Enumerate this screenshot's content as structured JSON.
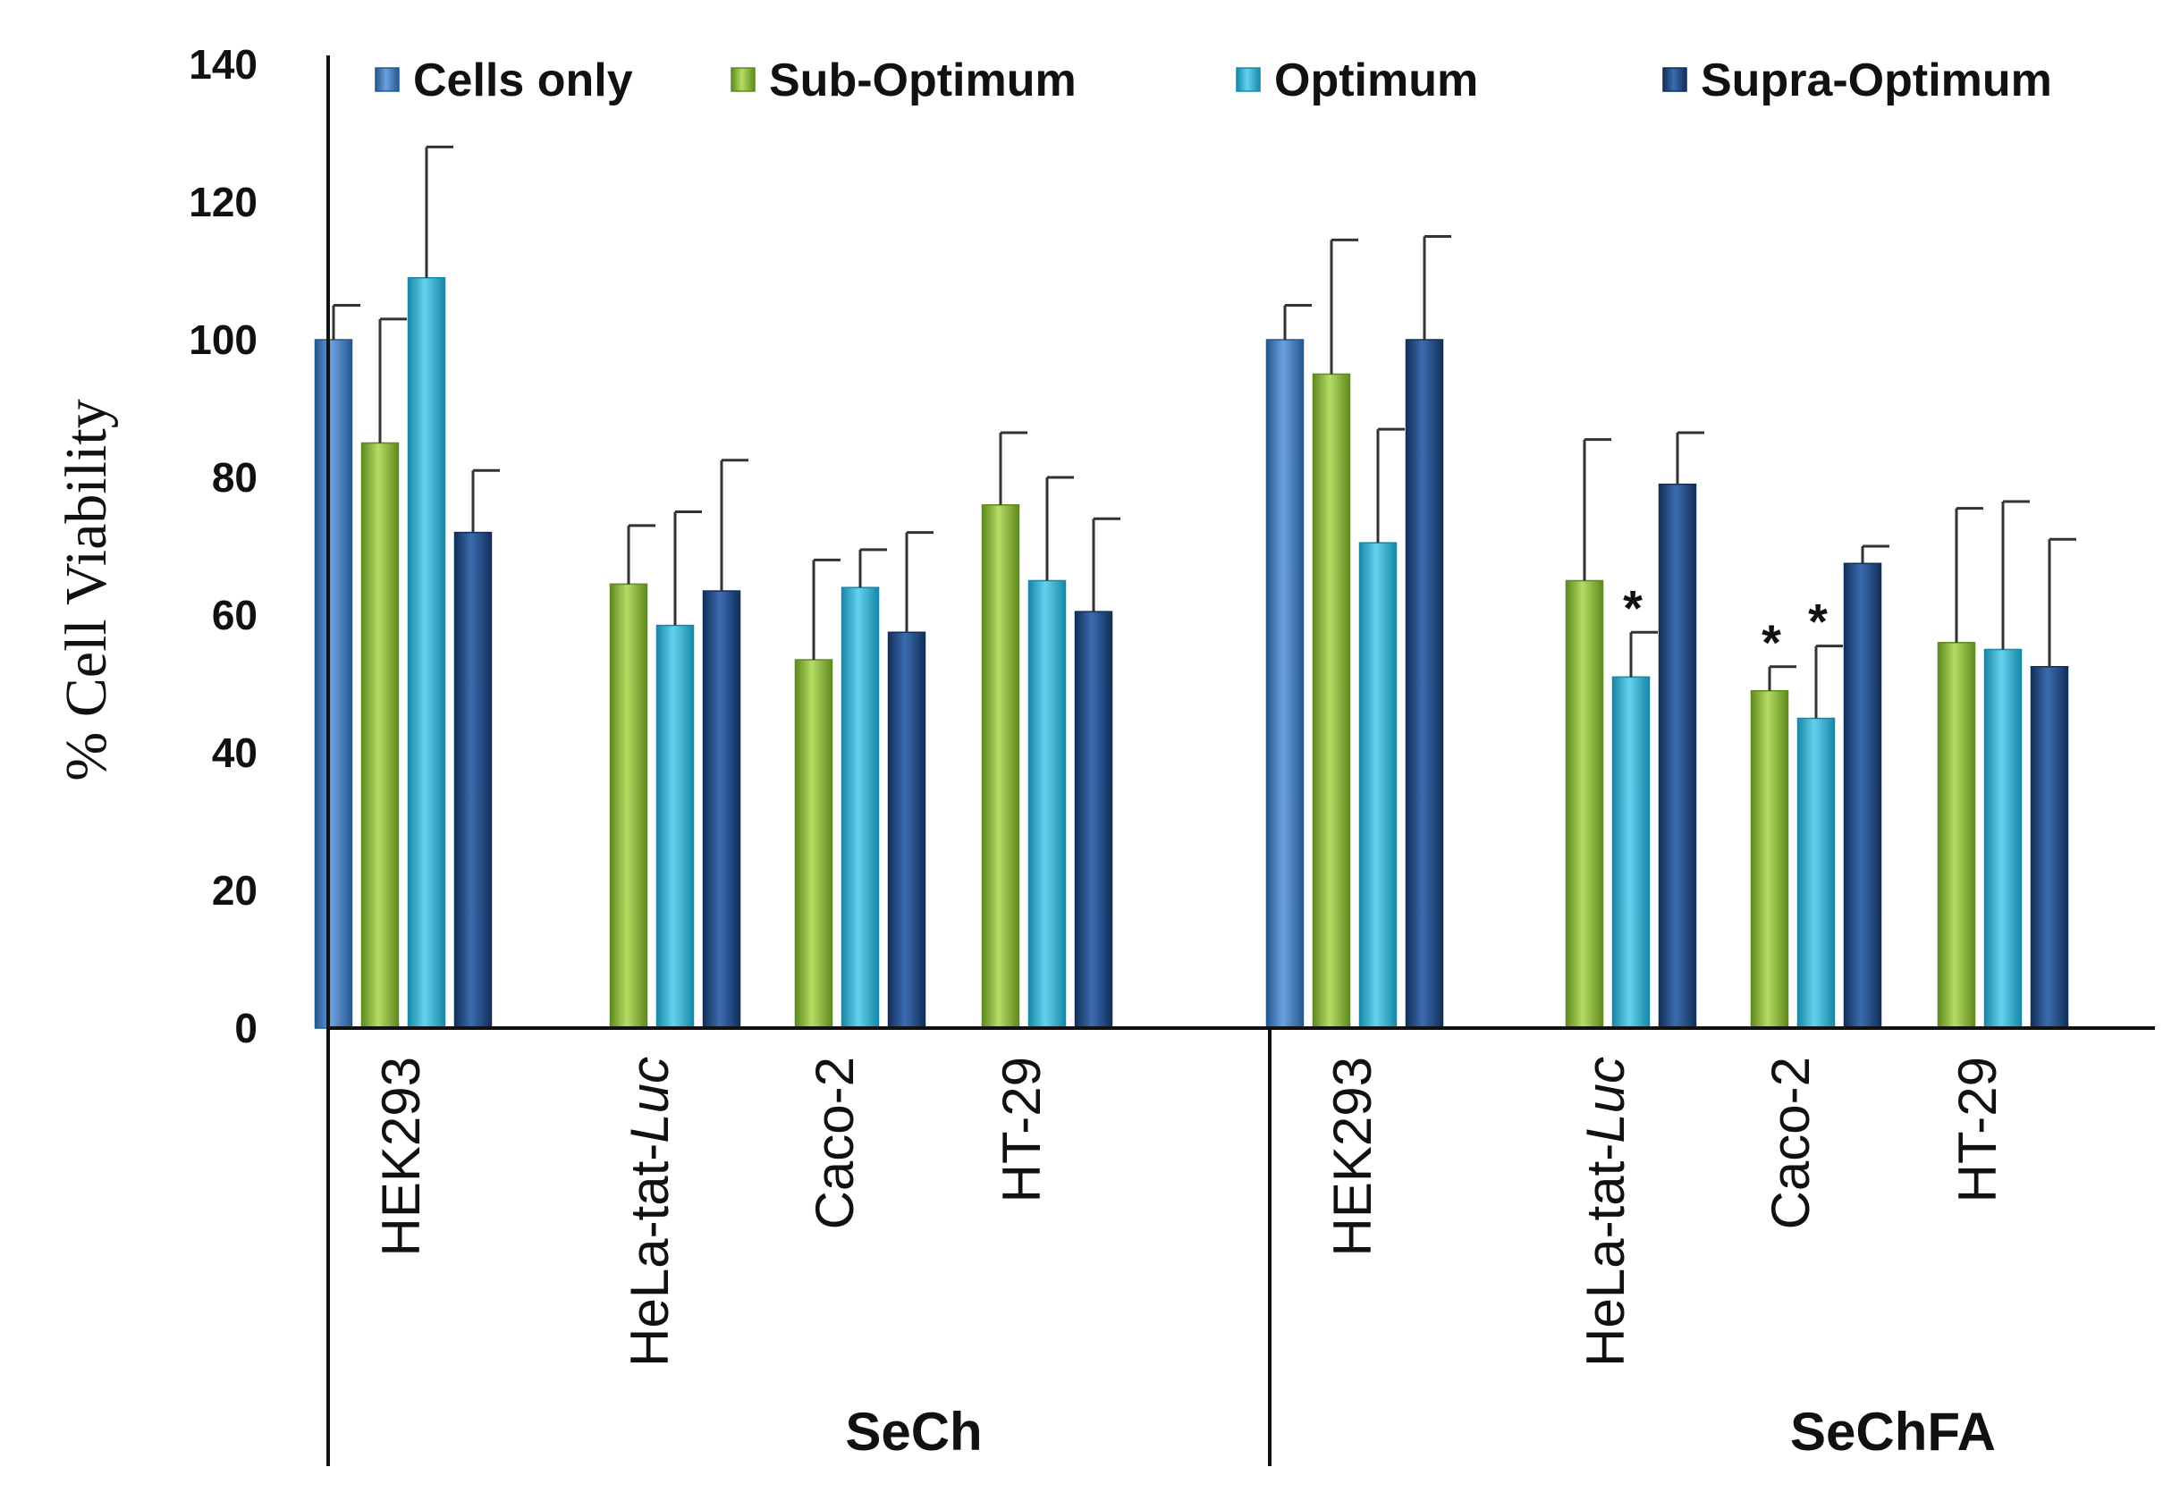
{
  "chart_data": {
    "type": "bar",
    "title": "",
    "ylabel": "% Cell Viability",
    "xlabel": "",
    "ylim": [
      0,
      140
    ],
    "yticks": [
      0,
      20,
      40,
      60,
      80,
      100,
      120,
      140
    ],
    "legend_position": "top",
    "groups": [
      {
        "label": "SeCh",
        "categories": [
          {
            "name": "HEK293",
            "name_italic": "",
            "values": [
              100,
              85,
              109,
              72
            ],
            "errors": [
              5,
              18,
              19,
              9
            ],
            "stars": [
              false,
              false,
              false,
              false
            ]
          },
          {
            "name": "HeLa-tat-",
            "name_italic": "Luc",
            "values": [
              null,
              64.5,
              58.5,
              63.5
            ],
            "errors": [
              null,
              8.5,
              16.5,
              19
            ],
            "stars": [
              false,
              false,
              false,
              false
            ]
          },
          {
            "name": "Caco-2",
            "name_italic": "",
            "values": [
              null,
              53.5,
              64,
              57.5
            ],
            "errors": [
              null,
              14.5,
              5.5,
              14.5
            ],
            "stars": [
              false,
              false,
              false,
              false
            ]
          },
          {
            "name": "HT-29",
            "name_italic": "",
            "values": [
              null,
              76,
              65,
              60.5
            ],
            "errors": [
              null,
              10.5,
              15,
              13.5
            ],
            "stars": [
              false,
              false,
              false,
              false
            ]
          }
        ]
      },
      {
        "label": "SeChFA",
        "categories": [
          {
            "name": "HEK293",
            "name_italic": "",
            "values": [
              100,
              95,
              70.5,
              100
            ],
            "errors": [
              5,
              19.5,
              16.5,
              15
            ],
            "stars": [
              false,
              false,
              false,
              false
            ]
          },
          {
            "name": "HeLa-tat-",
            "name_italic": "Luc",
            "values": [
              null,
              65,
              51,
              79
            ],
            "errors": [
              null,
              20.5,
              6.5,
              7.5
            ],
            "stars": [
              false,
              false,
              true,
              false
            ]
          },
          {
            "name": "Caco-2",
            "name_italic": "",
            "values": [
              null,
              49,
              45,
              67.5
            ],
            "errors": [
              null,
              3.5,
              10.5,
              2.5
            ],
            "stars": [
              false,
              true,
              true,
              false
            ]
          },
          {
            "name": "HT-29",
            "name_italic": "",
            "values": [
              null,
              56,
              55,
              52.5
            ],
            "errors": [
              null,
              19.5,
              21.5,
              18.5
            ],
            "stars": [
              false,
              false,
              false,
              false
            ]
          }
        ]
      }
    ],
    "series": [
      {
        "name": "Cells only",
        "color": "#3a78c4",
        "dark": "#25588f",
        "light": "#6aa1e0"
      },
      {
        "name": "Sub-Optimum",
        "color": "#8cb83a",
        "dark": "#5f8a1f",
        "light": "#b6dc64"
      },
      {
        "name": "Optimum",
        "color": "#2bb3d6",
        "dark": "#1788a8",
        "light": "#62d2ee"
      },
      {
        "name": "Supra-Optimum",
        "color": "#1f4a86",
        "dark": "#122f5a",
        "light": "#3b6cb0"
      }
    ],
    "star_symbol": "*"
  }
}
